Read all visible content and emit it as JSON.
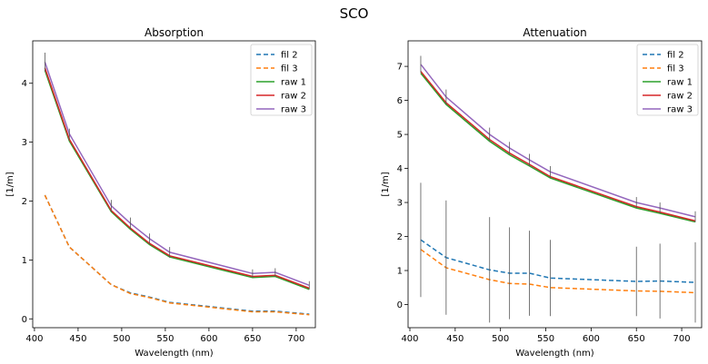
{
  "figure": {
    "suptitle": "SCO"
  },
  "colors": {
    "fil 2": "#1f77b4",
    "fil 3": "#ff7f0e",
    "raw 1": "#2ca02c",
    "raw 2": "#d62728",
    "raw 3": "#9467bd",
    "errorbar": "#555555"
  },
  "chart_data": [
    {
      "type": "line",
      "title": "Absorption",
      "xlabel": "Wavelength (nm)",
      "ylabel": "[1/m]",
      "xlim": [
        398,
        722
      ],
      "ylim": [
        -0.15,
        4.72
      ],
      "xticks": [
        400,
        450,
        500,
        550,
        600,
        650,
        700
      ],
      "yticks": [
        0,
        1,
        2,
        3,
        4
      ],
      "grid": false,
      "legend_position": "top-right",
      "x": [
        412,
        440,
        488,
        510,
        532,
        555,
        650,
        676,
        715
      ],
      "series": [
        {
          "name": "fil 2",
          "style": "dashed",
          "values": [
            2.1,
            1.22,
            0.58,
            0.44,
            0.37,
            0.28,
            0.13,
            0.13,
            0.08
          ]
        },
        {
          "name": "fil 3",
          "style": "dashed",
          "values": [
            2.1,
            1.22,
            0.58,
            0.43,
            0.36,
            0.27,
            0.12,
            0.12,
            0.07
          ]
        },
        {
          "name": "raw 1",
          "style": "solid",
          "values": [
            4.22,
            3.02,
            1.82,
            1.52,
            1.26,
            1.05,
            0.7,
            0.72,
            0.5
          ]
        },
        {
          "name": "raw 2",
          "style": "solid",
          "values": [
            4.26,
            3.05,
            1.84,
            1.54,
            1.28,
            1.07,
            0.72,
            0.74,
            0.52
          ]
        },
        {
          "name": "raw 3",
          "style": "solid",
          "values": [
            4.36,
            3.14,
            1.92,
            1.62,
            1.36,
            1.13,
            0.77,
            0.79,
            0.57
          ]
        }
      ],
      "error_bars": {
        "x": [
          412,
          440,
          488,
          510,
          532,
          555,
          650,
          676,
          715
        ],
        "center": [
          4.36,
          3.14,
          1.92,
          1.62,
          1.36,
          1.13,
          0.77,
          0.79,
          0.57
        ],
        "half": [
          0.16,
          0.09,
          0.1,
          0.1,
          0.09,
          0.09,
          0.07,
          0.07,
          0.07
        ]
      }
    },
    {
      "type": "line",
      "title": "Attenuation",
      "xlabel": "Wavelength (nm)",
      "ylabel": "[1/m]",
      "xlim": [
        398,
        722
      ],
      "ylim": [
        -0.68,
        7.75
      ],
      "xticks": [
        400,
        450,
        500,
        550,
        600,
        650,
        700
      ],
      "yticks": [
        0,
        1,
        2,
        3,
        4,
        5,
        6,
        7
      ],
      "grid": false,
      "legend_position": "top-right",
      "x": [
        412,
        440,
        488,
        510,
        532,
        555,
        650,
        676,
        715
      ],
      "series": [
        {
          "name": "fil 2",
          "style": "dashed",
          "values": [
            1.9,
            1.38,
            1.02,
            0.92,
            0.92,
            0.78,
            0.68,
            0.69,
            0.65
          ]
        },
        {
          "name": "fil 3",
          "style": "dashed",
          "values": [
            1.62,
            1.08,
            0.73,
            0.62,
            0.6,
            0.5,
            0.4,
            0.39,
            0.35
          ]
        },
        {
          "name": "raw 1",
          "style": "solid",
          "values": [
            6.8,
            5.88,
            4.8,
            4.4,
            4.07,
            3.72,
            2.84,
            2.68,
            2.43
          ]
        },
        {
          "name": "raw 2",
          "style": "solid",
          "values": [
            6.85,
            5.93,
            4.85,
            4.45,
            4.12,
            3.76,
            2.88,
            2.72,
            2.46
          ]
        },
        {
          "name": "raw 3",
          "style": "solid",
          "values": [
            7.06,
            6.1,
            5.0,
            4.6,
            4.25,
            3.9,
            3.0,
            2.84,
            2.58
          ]
        }
      ],
      "error_bars": {
        "x": [
          412,
          440,
          488,
          510,
          532,
          555,
          650,
          676,
          715
        ],
        "center": [
          1.9,
          1.38,
          1.02,
          0.92,
          0.92,
          0.78,
          0.68,
          0.69,
          0.65
        ],
        "half": [
          1.68,
          1.68,
          1.55,
          1.35,
          1.25,
          1.12,
          1.02,
          1.1,
          1.18
        ]
      },
      "raw_error_bars": {
        "x": [
          412,
          440,
          488,
          510,
          532,
          555,
          650,
          676,
          715
        ],
        "center": [
          7.06,
          6.1,
          5.0,
          4.6,
          4.25,
          3.9,
          3.0,
          2.84,
          2.58
        ],
        "half": [
          0.25,
          0.22,
          0.2,
          0.18,
          0.18,
          0.17,
          0.16,
          0.16,
          0.16
        ]
      }
    }
  ]
}
